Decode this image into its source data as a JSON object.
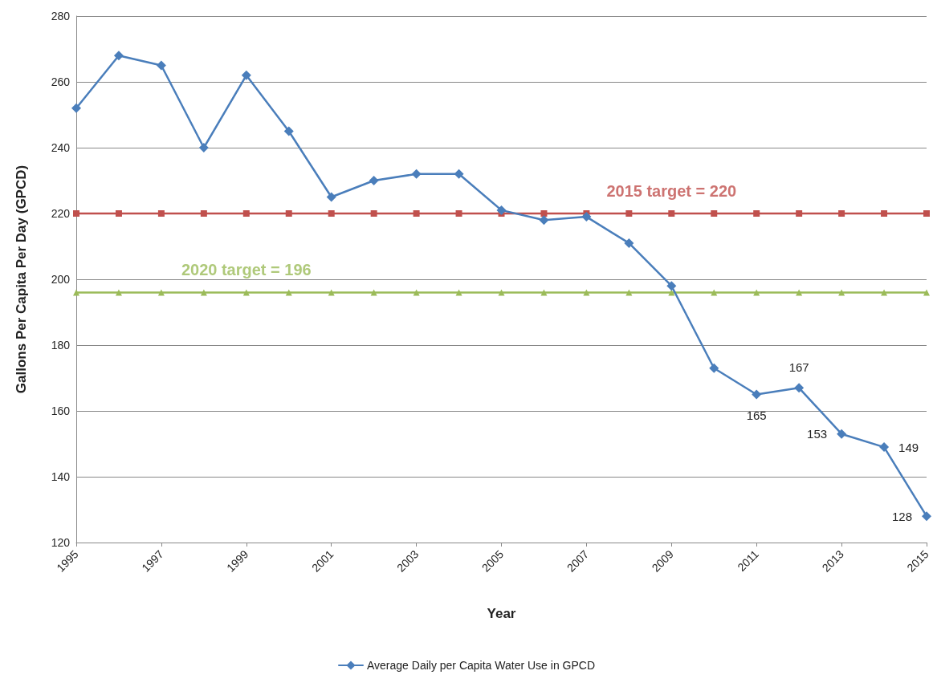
{
  "chart_data": {
    "type": "line",
    "xlabel": "Year",
    "ylabel": "Gallons Per Capita Per Day (GPCD)",
    "x": [
      1995,
      1996,
      1997,
      1998,
      1999,
      2000,
      2001,
      2002,
      2003,
      2004,
      2005,
      2006,
      2007,
      2008,
      2009,
      2010,
      2011,
      2012,
      2013,
      2014,
      2015
    ],
    "series": [
      {
        "name": "Average Daily per Capita Water Use in GPCD",
        "color": "#4a7ebb",
        "marker": "diamond",
        "values": [
          252,
          268,
          265,
          240,
          262,
          245,
          225,
          230,
          232,
          232,
          221,
          218,
          219,
          211,
          198,
          173,
          165,
          167,
          153,
          149,
          128
        ],
        "value_labels": [
          null,
          null,
          null,
          null,
          null,
          null,
          null,
          null,
          null,
          null,
          null,
          null,
          null,
          null,
          null,
          null,
          "165",
          "167",
          "153",
          "149",
          "128"
        ]
      },
      {
        "color": "#c0504d",
        "marker": "square",
        "values": [
          220,
          220,
          220,
          220,
          220,
          220,
          220,
          220,
          220,
          220,
          220,
          220,
          220,
          220,
          220,
          220,
          220,
          220,
          220,
          220,
          220
        ]
      },
      {
        "color": "#9bbb59",
        "marker": "triangle",
        "values": [
          196,
          196,
          196,
          196,
          196,
          196,
          196,
          196,
          196,
          196,
          196,
          196,
          196,
          196,
          196,
          196,
          196,
          196,
          196,
          196,
          196
        ]
      }
    ],
    "annotations": [
      {
        "text": "2015 target = 220",
        "x": 2009,
        "y": 220
      },
      {
        "text": "2020 target = 196",
        "x": 1999,
        "y": 196
      }
    ],
    "xlim": [
      1995,
      2015
    ],
    "xticks": [
      1995,
      1997,
      1999,
      2001,
      2003,
      2005,
      2007,
      2009,
      2011,
      2013,
      2015
    ],
    "ylim": [
      120,
      280
    ],
    "yticks": [
      120,
      140,
      160,
      180,
      200,
      220,
      240,
      260,
      280
    ],
    "grid": "y",
    "legend": "bottom",
    "line_style": "solid"
  }
}
